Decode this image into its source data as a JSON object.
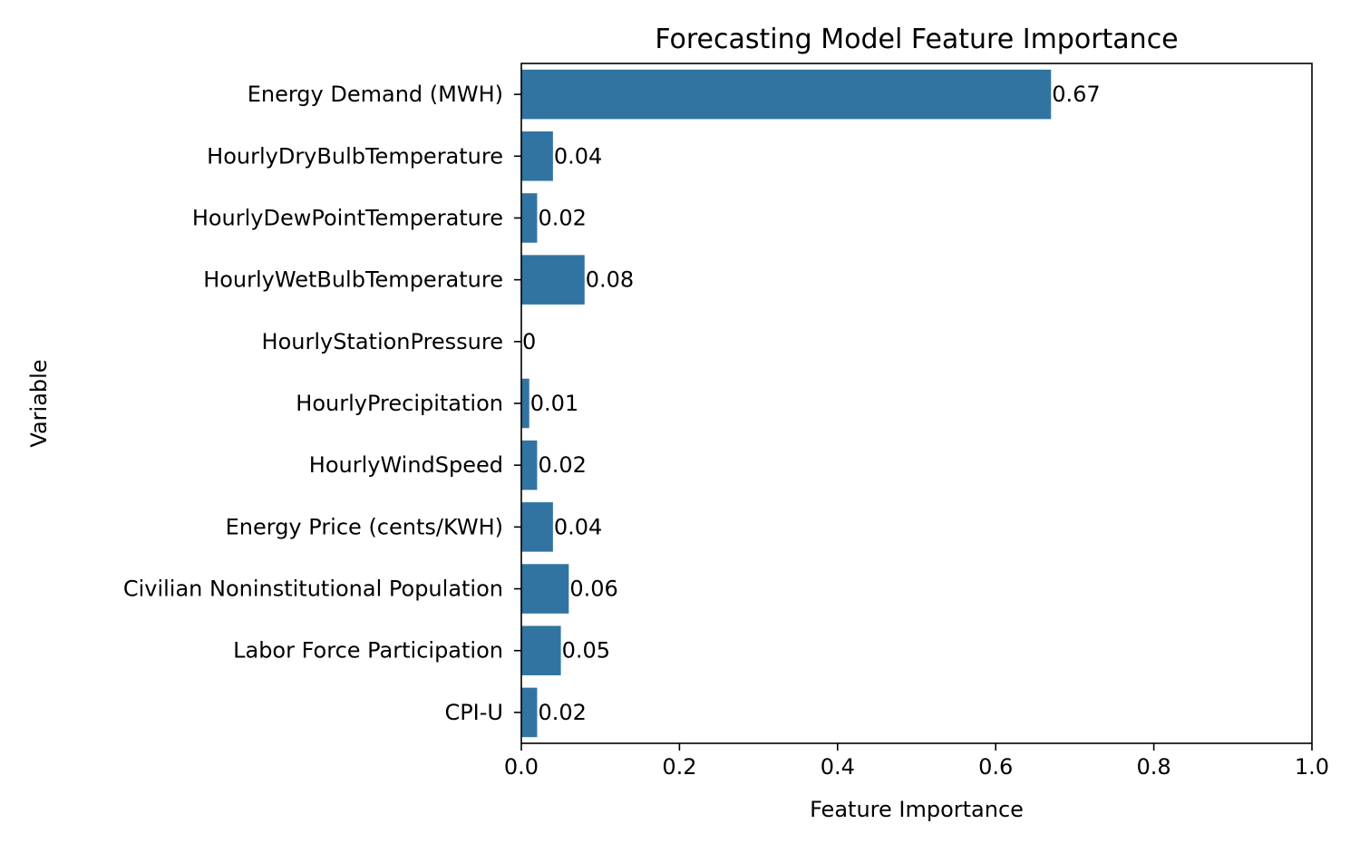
{
  "chart_data": {
    "type": "bar",
    "orientation": "horizontal",
    "title": "Forecasting Model Feature Importance",
    "xlabel": "Feature Importance",
    "ylabel": "Variable",
    "xlim": [
      0,
      1
    ],
    "xticks": [
      0.0,
      0.2,
      0.4,
      0.6,
      0.8,
      1.0
    ],
    "xtick_labels": [
      "0.0",
      "0.2",
      "0.4",
      "0.6",
      "0.8",
      "1.0"
    ],
    "grid": false,
    "bar_color": "#3274a1",
    "categories": [
      "Energy Demand (MWH)",
      "HourlyDryBulbTemperature",
      "HourlyDewPointTemperature",
      "HourlyWetBulbTemperature",
      "HourlyStationPressure",
      "HourlyPrecipitation",
      "HourlyWindSpeed",
      "Energy Price (cents/KWH)",
      "Civilian Noninstitutional Population",
      "Labor Force Participation",
      "CPI-U"
    ],
    "values": [
      0.67,
      0.04,
      0.02,
      0.08,
      0.0,
      0.01,
      0.02,
      0.04,
      0.06,
      0.05,
      0.02
    ],
    "value_labels": [
      "0.67",
      "0.04",
      "0.02",
      "0.08",
      "0",
      "0.01",
      "0.02",
      "0.04",
      "0.06",
      "0.05",
      "0.02"
    ]
  }
}
